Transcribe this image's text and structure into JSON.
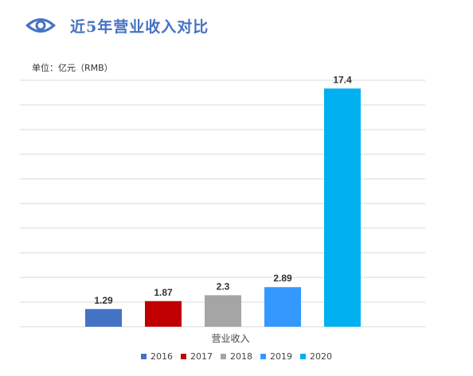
{
  "header": {
    "title": "近5年营业收入对比",
    "icon": "eye-icon"
  },
  "unit_label": "单位：亿元（RMB）",
  "colors": {
    "accent": "#4472c4",
    "grid": "#d9d9d9"
  },
  "chart_data": {
    "type": "bar",
    "categories": [
      "营业收入"
    ],
    "series": [
      {
        "name": "2016",
        "values": [
          1.29
        ],
        "color": "#4472c4"
      },
      {
        "name": "2017",
        "values": [
          1.87
        ],
        "color": "#c00000"
      },
      {
        "name": "2018",
        "values": [
          2.3
        ],
        "color": "#a5a5a5"
      },
      {
        "name": "2019",
        "values": [
          2.89
        ],
        "color": "#3399ff"
      },
      {
        "name": "2020",
        "values": [
          17.4
        ],
        "color": "#00b0f0"
      }
    ],
    "data_labels": [
      "1.29",
      "1.87",
      "2.3",
      "2.89",
      "17.4"
    ],
    "ylim": [
      0,
      18
    ],
    "grid": true,
    "legend": "bottom"
  }
}
